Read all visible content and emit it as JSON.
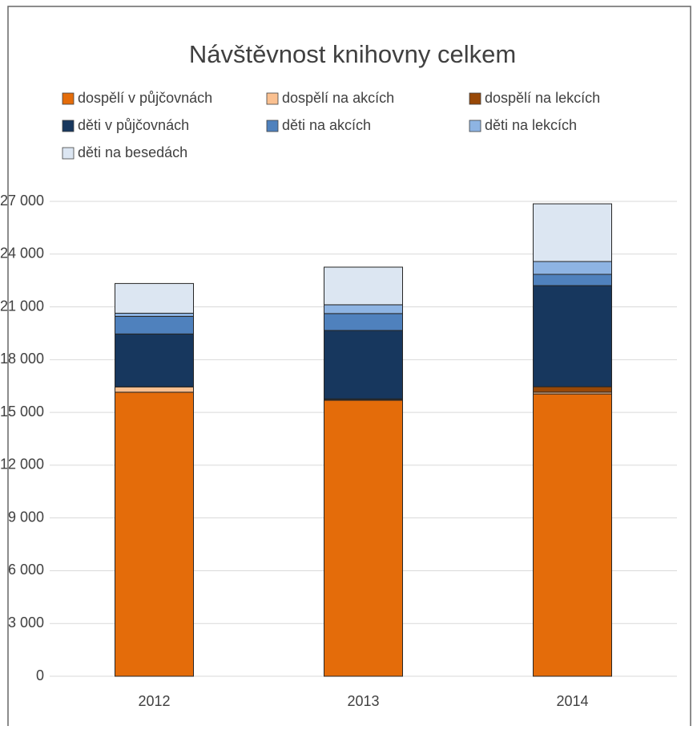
{
  "chart_data": {
    "type": "stacked_bar",
    "title": "Návštěvnost knihovny celkem",
    "categories": [
      "2012",
      "2013",
      "2014"
    ],
    "series": [
      {
        "name": "dospělí v půjčovnách",
        "color": "#e46c0a",
        "values": [
          16150,
          15690,
          16050
        ]
      },
      {
        "name": "dospělí na akcích",
        "color": "#fac090",
        "values": [
          300,
          50,
          100
        ]
      },
      {
        "name": "dospělí na lekcích",
        "color": "#984807",
        "values": [
          10,
          30,
          310
        ]
      },
      {
        "name": "děti v půjčovnách",
        "color": "#17375e",
        "values": [
          3000,
          3890,
          5750
        ]
      },
      {
        "name": "děti na akcích",
        "color": "#4f81bd",
        "values": [
          1000,
          960,
          640
        ]
      },
      {
        "name": "děti na lekcích",
        "color": "#8eb4e3",
        "values": [
          180,
          500,
          730
        ]
      },
      {
        "name": "děti na besedách",
        "color": "#dce6f2",
        "values": [
          1690,
          2140,
          3280
        ]
      }
    ],
    "ylim": [
      0,
      27000
    ],
    "yticks": [
      0,
      {
        "value": 3000,
        "label": "3 000"
      },
      {
        "value": 6000,
        "label": "6 000"
      },
      {
        "value": 9000,
        "label": "9 000"
      },
      {
        "value": 12000,
        "label": "12 000"
      },
      {
        "value": 15000,
        "label": "15 000"
      },
      {
        "value": 18000,
        "label": "18 000"
      },
      {
        "value": 21000,
        "label": "21 000"
      },
      {
        "value": 24000,
        "label": "24 000"
      },
      {
        "value": 27000,
        "label": "27 000"
      }
    ],
    "grid": true,
    "legend": "top"
  }
}
